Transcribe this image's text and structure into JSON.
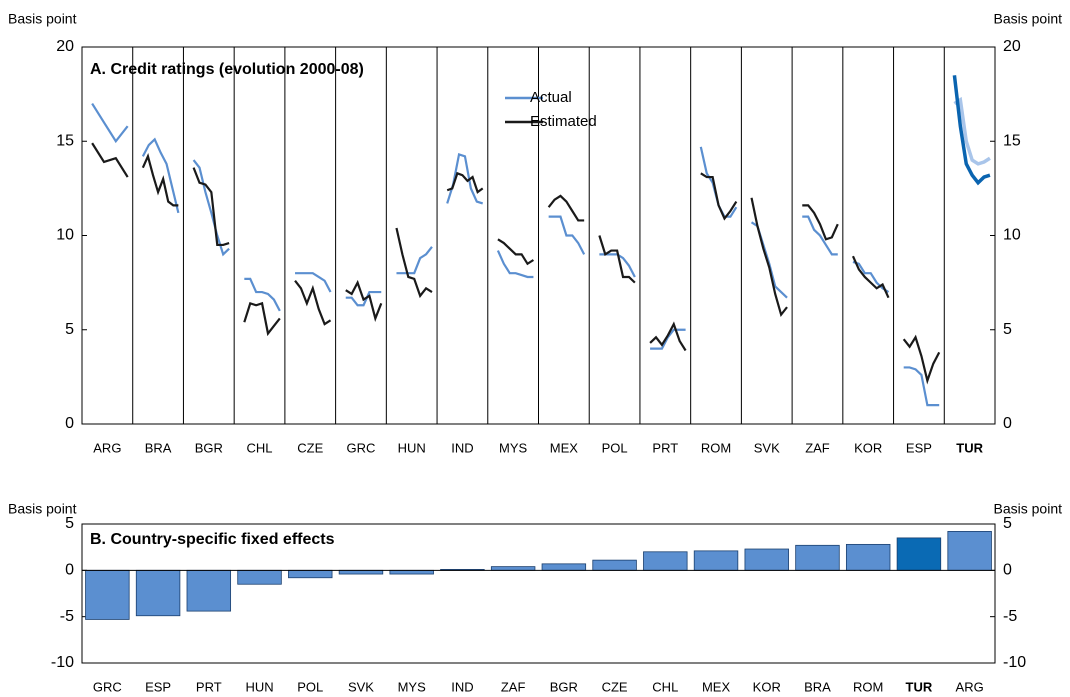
{
  "chart_data": [
    {
      "type": "line",
      "title": "A. Credit ratings (evolution 2000-08)",
      "ylabel": "Basis point",
      "y2label": "Basis point",
      "categories": [
        "ARG",
        "BRA",
        "BGR",
        "CHL",
        "CZE",
        "GRC",
        "HUN",
        "IND",
        "MYS",
        "MEX",
        "POL",
        "PRT",
        "ROM",
        "SVK",
        "ZAF",
        "KOR",
        "ESP",
        "TUR"
      ],
      "highlight_index": 17,
      "series": [
        {
          "name": "Actual",
          "color": "#5b8fd0",
          "highlight_color": "#a9c5ea",
          "values": [
            [
              17,
              16,
              15,
              15.8
            ],
            [
              14.2,
              14.8,
              15.1,
              14.4,
              13.8,
              12.5,
              11.2
            ],
            [
              14,
              13.6,
              12.3,
              11.2,
              10,
              9,
              9.3
            ],
            [
              7.7,
              7.7,
              7,
              7,
              6.9,
              6.6,
              6
            ],
            [
              8,
              8,
              8,
              8,
              7.8,
              7.6,
              7
            ],
            [
              6.7,
              6.7,
              6.3,
              6.3,
              7,
              7,
              7
            ],
            [
              8,
              8,
              8,
              8,
              8.8,
              9,
              9.4
            ],
            [
              11.7,
              12.7,
              14.3,
              14.2,
              12.5,
              11.8,
              11.7
            ],
            [
              9.2,
              8.5,
              8,
              8,
              7.9,
              7.8,
              7.8
            ],
            [
              11,
              11,
              11,
              10,
              10,
              9.6,
              9
            ],
            [
              9,
              9,
              9,
              9,
              8.8,
              8.4,
              7.8
            ],
            [
              4,
              4,
              4,
              4.6,
              5,
              5,
              5
            ],
            [
              14.7,
              13.3,
              12.8,
              11.6,
              11,
              11,
              11.5
            ],
            [
              10.7,
              10.5,
              9.5,
              8.5,
              7.3,
              7,
              6.7
            ],
            [
              11,
              11,
              10.3,
              10,
              9.5,
              9,
              9
            ],
            [
              8.6,
              8.5,
              8,
              8,
              7.5,
              7.2,
              7
            ],
            [
              3,
              3,
              2.9,
              2.6,
              1,
              1,
              1
            ],
            [
              17,
              17.2,
              15,
              14,
              13.8,
              13.9,
              14.1
            ]
          ]
        },
        {
          "name": "Estimated",
          "color": "#1a1a1a",
          "highlight_color": "#0a64b0",
          "values": [
            [
              14.9,
              13.9,
              14.1,
              13.1
            ],
            [
              13.6,
              14.2,
              13.2,
              12.3,
              13,
              11.8,
              11.6,
              11.6
            ],
            [
              13.6,
              12.8,
              12.7,
              12.3,
              9.5,
              9.5,
              9.6
            ],
            [
              5.4,
              6.4,
              6.3,
              6.4,
              4.8,
              5.2,
              5.6
            ],
            [
              7.6,
              7.2,
              6.4,
              7.2,
              6.1,
              5.3,
              5.5
            ],
            [
              7.1,
              6.9,
              7.5,
              6.6,
              6.8,
              5.6,
              6.4
            ],
            [
              10.4,
              9,
              7.8,
              7.7,
              6.8,
              7.2,
              7
            ],
            [
              12.4,
              12.5,
              13.3,
              13.2,
              12.9,
              13.1,
              12.3,
              12.5
            ],
            [
              9.8,
              9.6,
              9.3,
              9,
              9,
              8.5,
              8.7
            ],
            [
              11.5,
              11.9,
              12.1,
              11.8,
              11.3,
              10.8,
              10.8
            ],
            [
              10,
              9,
              9.2,
              9.2,
              7.8,
              7.8,
              7.5
            ],
            [
              4.3,
              4.6,
              4.2,
              4.7,
              5.3,
              4.4,
              3.9
            ],
            [
              13.3,
              13.1,
              13.1,
              11.6,
              10.9,
              11.3,
              11.8
            ],
            [
              12,
              10.5,
              9.3,
              8.3,
              6.9,
              5.8,
              6.2
            ],
            [
              11.6,
              11.6,
              11.2,
              10.6,
              9.8,
              9.9,
              10.6
            ],
            [
              8.9,
              8.2,
              7.8,
              7.5,
              7.2,
              7.4,
              6.7
            ],
            [
              4.5,
              4.1,
              4.6,
              3.6,
              2.3,
              3.2,
              3.8
            ],
            [
              18.5,
              15.8,
              13.8,
              13.2,
              12.8,
              13.1,
              13.2
            ]
          ]
        }
      ],
      "ylim": [
        0,
        20
      ],
      "yticks": [
        0,
        5,
        10,
        15,
        20
      ],
      "y2lim": [
        0,
        20
      ],
      "y2ticks": [
        0,
        5,
        10,
        15,
        20
      ]
    },
    {
      "type": "bar",
      "title": "B. Country-specific fixed effects",
      "ylabel": "Basis point",
      "y2label": "Basis point",
      "categories": [
        "GRC",
        "ESP",
        "PRT",
        "HUN",
        "POL",
        "SVK",
        "MYS",
        "IND",
        "ZAF",
        "BGR",
        "CZE",
        "CHL",
        "MEX",
        "KOR",
        "BRA",
        "ROM",
        "TUR",
        "ARG"
      ],
      "values": [
        -5.3,
        -4.9,
        -4.4,
        -1.5,
        -0.8,
        -0.4,
        -0.4,
        0.1,
        0.4,
        0.7,
        1.1,
        2.0,
        2.1,
        2.3,
        2.7,
        2.8,
        3.5,
        4.2
      ],
      "color": "#5b8fd0",
      "highlight_color": "#0a6ab4",
      "highlight_index": 16,
      "ylim": [
        -10,
        5
      ],
      "yticks": [
        -10,
        -5,
        0,
        5
      ],
      "y2lim": [
        -10,
        5
      ],
      "y2ticks": [
        -10,
        -5,
        0,
        5
      ]
    }
  ]
}
